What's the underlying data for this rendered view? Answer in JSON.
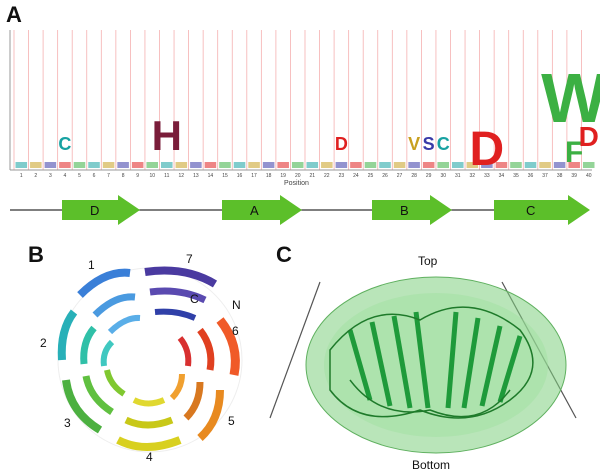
{
  "panels": {
    "a": "A",
    "b": "B",
    "c": "C"
  },
  "logo": {
    "x_label": "Position",
    "positions": [
      "1",
      "2",
      "3",
      "4",
      "5",
      "6",
      "7",
      "8",
      "9",
      "10",
      "11",
      "12",
      "13",
      "14",
      "15",
      "16",
      "17",
      "18",
      "19",
      "20",
      "21",
      "22",
      "23",
      "24",
      "25",
      "26",
      "27",
      "28",
      "29",
      "30",
      "31",
      "32",
      "33",
      "34",
      "35",
      "36",
      "37",
      "38",
      "39",
      "40"
    ],
    "big_letters": [
      {
        "pos": 11,
        "letter": "H",
        "color": "#7a1d3a"
      },
      {
        "pos": 33,
        "letter": "D",
        "color": "#e02020"
      },
      {
        "pos": 39,
        "letter": "W",
        "color": "#3cb043"
      },
      {
        "pos": 39,
        "letter": "F",
        "color": "#3cb043"
      },
      {
        "pos": 40,
        "letter": "D",
        "color": "#e02020"
      },
      {
        "pos": 29,
        "letter": "S",
        "color": "#3a3aa8"
      },
      {
        "pos": 30,
        "letter": "C",
        "color": "#17a2a2"
      },
      {
        "pos": 28,
        "letter": "V",
        "color": "#c8a020"
      },
      {
        "pos": 4,
        "letter": "C",
        "color": "#17a2a2"
      },
      {
        "pos": 23,
        "letter": "D",
        "color": "#e02020"
      }
    ]
  },
  "strands": [
    "D",
    "A",
    "B",
    "C"
  ],
  "blade_numbers": [
    "1",
    "2",
    "3",
    "4",
    "5",
    "6",
    "7"
  ],
  "termini": {
    "c": "C",
    "n": "N"
  },
  "surface_labels": {
    "top": "Top",
    "bottom": "Bottom"
  },
  "colors": {
    "arrow_green": "#5cbf2a",
    "grid_red": "#f5b0b0",
    "surface_green": "#7fd07f",
    "ribbon_green": "#1e9a3a"
  }
}
